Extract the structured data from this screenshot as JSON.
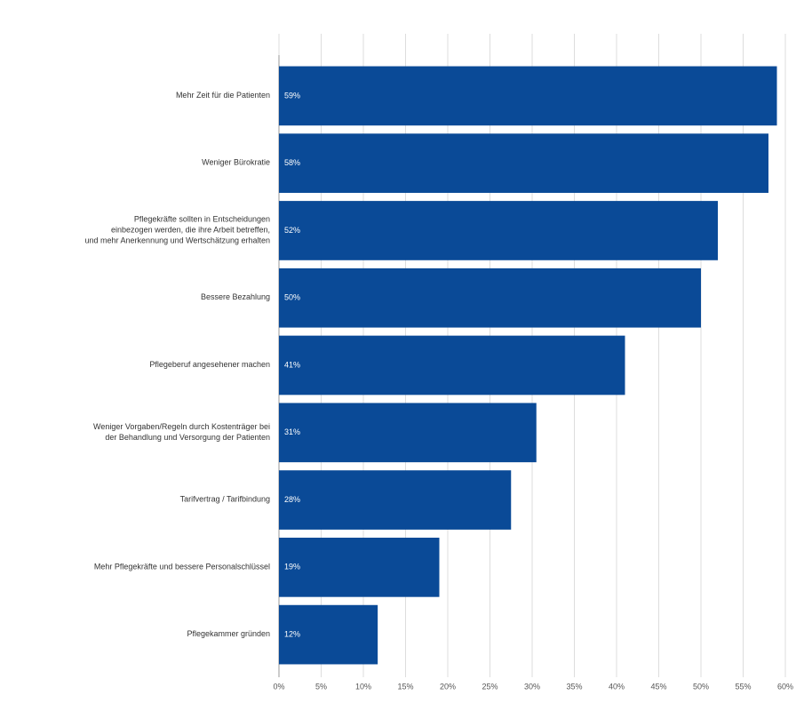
{
  "chart_data": {
    "type": "barh",
    "categories": [
      "Mehr Zeit für die Patienten",
      "Weniger Bürokratie",
      "Pflegekräfte sollten in Entscheidungen einbezogen werden, die ihre Arbeit betreffen, und mehr Anerkennung und Wertschätzung erhalten",
      "Bessere Bezahlung",
      "Pflegeberuf angesehener machen",
      "Weniger Vorgaben/Regeln durch Kostenträger bei der Behandlung und Versorgung der Patienten",
      "Tarifvertrag / Tarifbindung",
      "Mehr Pflegekräfte und bessere Personalschlüssel",
      "Pflegekammer gründen"
    ],
    "values": [
      59,
      58,
      52,
      50,
      41,
      30.5,
      27.5,
      19,
      11.7
    ],
    "value_labels": [
      "59%",
      "58%",
      "52%",
      "50%",
      "41%",
      "31%",
      "28%",
      "19%",
      "12%"
    ],
    "color": "#0a4a97",
    "xlim": [
      0,
      60
    ],
    "xticks": [
      {
        "value": 0,
        "label": "0%"
      },
      {
        "value": 5,
        "label": "5%"
      },
      {
        "value": 10,
        "label": "10%"
      },
      {
        "value": 15,
        "label": "15%"
      },
      {
        "value": 20,
        "label": "20%"
      },
      {
        "value": 25,
        "label": "25%"
      },
      {
        "value": 30,
        "label": "30%"
      },
      {
        "value": 35,
        "label": "35%"
      },
      {
        "value": 40,
        "label": "40%"
      },
      {
        "value": 45,
        "label": "45%"
      },
      {
        "value": 50,
        "label": "50%"
      },
      {
        "value": 55,
        "label": "55%"
      },
      {
        "value": 60,
        "label": "60%"
      }
    ],
    "grid": true
  }
}
